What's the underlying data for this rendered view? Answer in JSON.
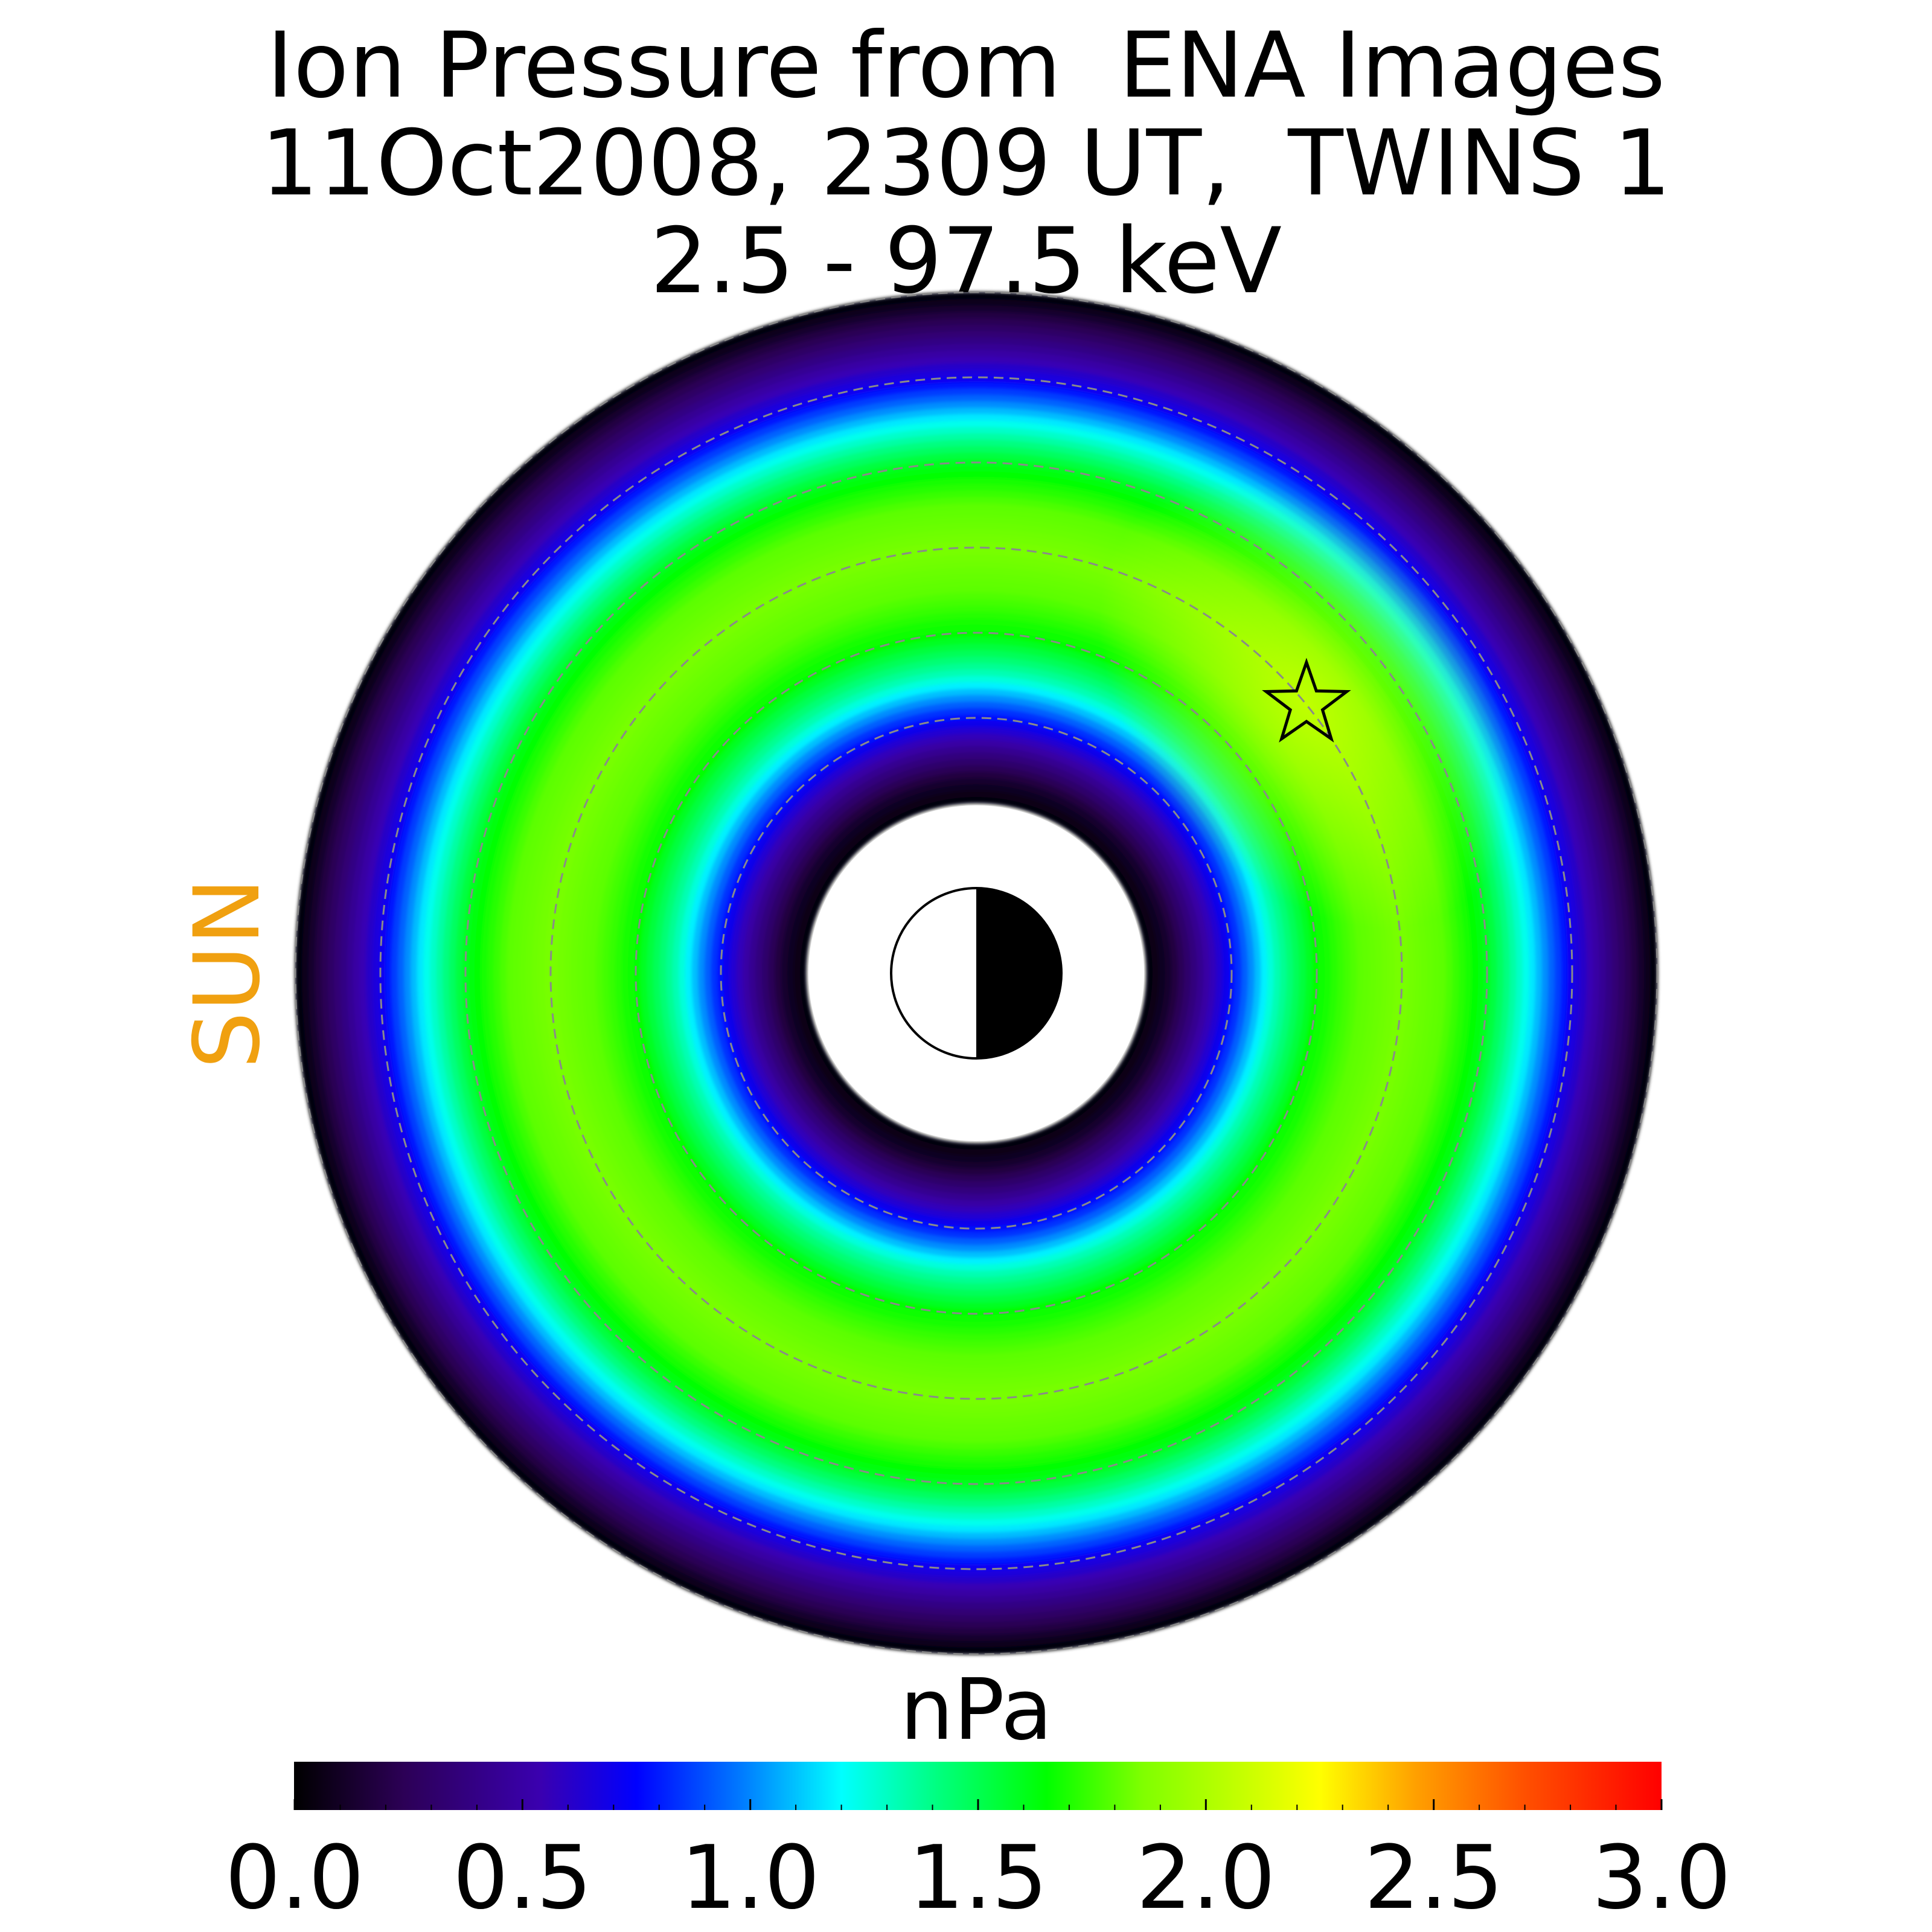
{
  "chart_data": {
    "type": "heatmap",
    "projection": "polar equatorial-plane map",
    "title": [
      "Ion Pressure from  ENA Images",
      "11Oct2008, 2309 UT,  TWINS 1",
      "2.5 - 97.5 keV"
    ],
    "side_label": "SUN",
    "colorbar": {
      "label": "nPa",
      "range": [
        0.0,
        3.0
      ],
      "tick_labels": [
        "0.0",
        "0.5",
        "1.0",
        "1.5",
        "2.0",
        "2.5",
        "3.0"
      ],
      "colormap_stops": [
        [
          0.0,
          "#000000"
        ],
        [
          0.08,
          "#2c0056"
        ],
        [
          0.18,
          "#3a00b0"
        ],
        [
          0.25,
          "#0000ff"
        ],
        [
          0.33,
          "#0080ff"
        ],
        [
          0.4,
          "#00ffff"
        ],
        [
          0.47,
          "#00ff80"
        ],
        [
          0.55,
          "#00ff00"
        ],
        [
          0.62,
          "#7fff00"
        ],
        [
          0.7,
          "#ccff00"
        ],
        [
          0.75,
          "#ffff00"
        ],
        [
          0.82,
          "#ffa000"
        ],
        [
          0.9,
          "#ff5000"
        ],
        [
          1.0,
          "#ff0000"
        ]
      ]
    },
    "radial_profile": {
      "r": [
        2.0,
        2.3,
        2.6,
        3.0,
        3.5,
        4.0,
        4.5,
        5.0,
        5.5,
        6.0,
        6.5,
        7.0,
        7.5,
        8.0
      ],
      "pressure": [
        0.0,
        0.15,
        0.4,
        0.75,
        1.3,
        1.65,
        1.8,
        1.85,
        1.8,
        1.6,
        1.2,
        0.7,
        0.35,
        0.0
      ]
    },
    "peak": {
      "pressure": 2.1,
      "r": 5.0,
      "direction": "upper right"
    },
    "inner_boundary_r": 2.0,
    "outer_boundary_r": 8.0,
    "grid_circles_r": [
      3,
      4,
      5,
      6,
      7,
      8
    ],
    "marker": {
      "shape": "star",
      "r": 5.0,
      "direction": "upper right"
    },
    "earth": {
      "r": 1,
      "day_side": "white",
      "night_side": "black"
    }
  }
}
